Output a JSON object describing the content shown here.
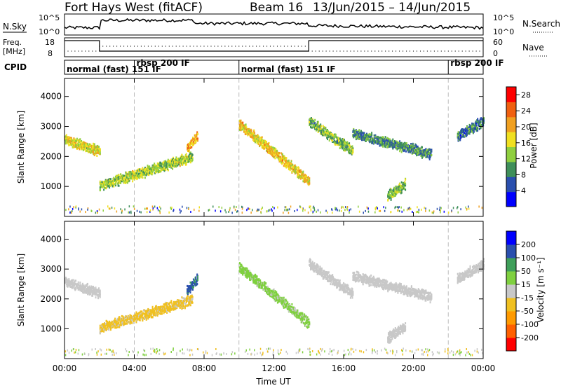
{
  "header": {
    "title": "Fort Hays West (fitACF)",
    "beam": "Beam 16",
    "date_range": "13/Jun/2015 – 14/Jun/2015"
  },
  "strips": {
    "nsky_label": "N.Sky",
    "nsearch_label": "N.Search",
    "freq_label_1": "Freq.",
    "freq_label_2": "[MHz]",
    "nave_label": "Nave",
    "cpid_label": "CPID",
    "nsky_ticks": [
      "10^5",
      "10^0"
    ],
    "nsearch_ticks": [
      "10^5",
      "10^0"
    ],
    "freq_ticks": [
      "18",
      "8"
    ],
    "nave_ticks": [
      "60",
      "0"
    ]
  },
  "modes": [
    {
      "label": "normal (fast) 151 IF",
      "start_hour": 0,
      "end_hour": 4
    },
    {
      "label": "rbsp 200 IF",
      "start_hour": 4,
      "end_hour": 10
    },
    {
      "label": "normal (fast) 151 IF",
      "start_hour": 10,
      "end_hour": 22
    },
    {
      "label": "rbsp 200 IF",
      "start_hour": 22,
      "end_hour": 24
    }
  ],
  "chart_data": [
    {
      "type": "heatmap",
      "name": "power",
      "xlabel": "Time UT",
      "ylabel": "Slant Range [km]",
      "xlim": [
        0,
        24
      ],
      "ylim": [
        0,
        4600
      ],
      "x_ticks": [
        "00:00",
        "04:00",
        "08:00",
        "12:00",
        "16:00",
        "20:00",
        "00:00"
      ],
      "y_ticks": [
        1000,
        2000,
        3000,
        4000
      ],
      "colorbar": {
        "label": "Power [dB]",
        "ticks": [
          4,
          8,
          12,
          16,
          20,
          24,
          28
        ],
        "range": [
          0,
          30
        ],
        "colors": [
          "#0000ff",
          "#2a4fae",
          "#3f8f5a",
          "#8fcf3f",
          "#f0e020",
          "#f0a020",
          "#f06010",
          "#ff0000"
        ]
      },
      "echo_bands": [
        {
          "t_start": 0.0,
          "t_end": 2.0,
          "range_start": 2600,
          "range_end": 2200,
          "power": 16
        },
        {
          "t_start": 2.0,
          "t_end": 7.3,
          "range_start": 1050,
          "range_end": 2000,
          "power": 14
        },
        {
          "t_start": 7.0,
          "t_end": 7.6,
          "range_start": 2300,
          "range_end": 2700,
          "power": 20
        },
        {
          "t_start": 10.0,
          "t_end": 14.0,
          "range_start": 3100,
          "range_end": 1200,
          "power": 18
        },
        {
          "t_start": 14.0,
          "t_end": 16.5,
          "range_start": 3200,
          "range_end": 2200,
          "power": 12
        },
        {
          "t_start": 16.5,
          "t_end": 21.0,
          "range_start": 2800,
          "range_end": 2100,
          "power": 9
        },
        {
          "t_start": 18.5,
          "t_end": 19.5,
          "range_start": 700,
          "range_end": 1100,
          "power": 12
        },
        {
          "t_start": 22.5,
          "t_end": 24.0,
          "range_start": 2700,
          "range_end": 3200,
          "power": 8
        }
      ]
    },
    {
      "type": "heatmap",
      "name": "velocity",
      "xlabel": "Time UT",
      "ylabel": "Slant Range [km]",
      "xlim": [
        0,
        24
      ],
      "ylim": [
        0,
        4600
      ],
      "x_ticks": [
        "00:00",
        "04:00",
        "08:00",
        "12:00",
        "16:00",
        "20:00",
        "00:00"
      ],
      "y_ticks": [
        1000,
        2000,
        3000,
        4000
      ],
      "colorbar": {
        "label": "Velocity [m s⁻¹]",
        "ticks": [
          200,
          100,
          50,
          15,
          -15,
          -50,
          -100,
          -200
        ],
        "range": [
          -250,
          250
        ],
        "colors": [
          "#ff0000",
          "#ff6000",
          "#ff9a00",
          "#f0c020",
          "#c8c8c8",
          "#7fd03f",
          "#3f9f5a",
          "#2a4fae",
          "#0000ff"
        ]
      },
      "echo_bands": [
        {
          "t_start": 0.0,
          "t_end": 2.0,
          "range_start": 2600,
          "range_end": 2200,
          "velocity": 0
        },
        {
          "t_start": 2.0,
          "t_end": 7.3,
          "range_start": 1050,
          "range_end": 2000,
          "velocity": -40
        },
        {
          "t_start": 7.0,
          "t_end": 7.6,
          "range_start": 2300,
          "range_end": 2700,
          "velocity": 150
        },
        {
          "t_start": 10.0,
          "t_end": 14.0,
          "range_start": 3100,
          "range_end": 1200,
          "velocity": 40
        },
        {
          "t_start": 14.0,
          "t_end": 16.5,
          "range_start": 3200,
          "range_end": 2200,
          "velocity": 0
        },
        {
          "t_start": 16.5,
          "t_end": 21.0,
          "range_start": 2800,
          "range_end": 2100,
          "velocity": 0
        },
        {
          "t_start": 18.5,
          "t_end": 19.5,
          "range_start": 700,
          "range_end": 1100,
          "velocity": 0
        },
        {
          "t_start": 22.5,
          "t_end": 24.0,
          "range_start": 2700,
          "range_end": 3200,
          "velocity": 0
        }
      ]
    }
  ]
}
